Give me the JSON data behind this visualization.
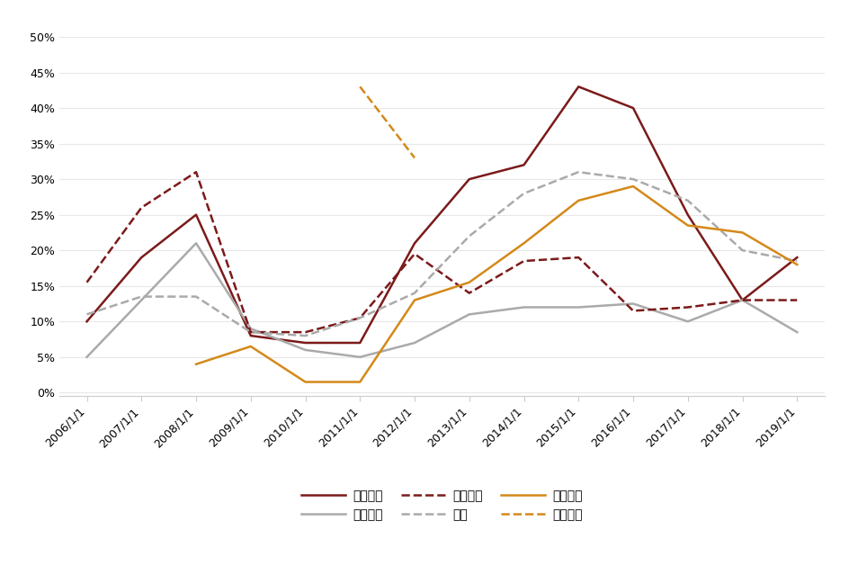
{
  "years": [
    2006,
    2007,
    2008,
    2009,
    2010,
    2011,
    2012,
    2013,
    2014,
    2015,
    2016,
    2017,
    2018,
    2019
  ],
  "series": {
    "三一重工": {
      "values": [
        0.1,
        0.19,
        0.25,
        0.08,
        0.07,
        0.07,
        0.21,
        0.3,
        0.32,
        0.43,
        0.4,
        0.25,
        0.13,
        0.19
      ],
      "color": "#7B1A1A",
      "linestyle": "solid",
      "linewidth": 1.8,
      "dashes": null
    },
    "中联重科": {
      "values": [
        0.05,
        0.13,
        0.21,
        0.09,
        0.06,
        0.05,
        0.07,
        0.11,
        0.12,
        0.12,
        0.125,
        0.1,
        0.13,
        0.085
      ],
      "color": "#AAAAAA",
      "linestyle": "solid",
      "linewidth": 1.8,
      "dashes": null
    },
    "徐工机械": {
      "values": [
        0.155,
        0.26,
        0.31,
        0.085,
        0.085,
        0.105,
        0.195,
        0.14,
        0.185,
        0.19,
        0.115,
        0.12,
        0.13,
        0.13
      ],
      "color": "#7B1A1A",
      "linestyle": "dashed",
      "linewidth": 1.8,
      "dashes": [
        6,
        3
      ]
    },
    "柳工": {
      "values": [
        0.11,
        0.135,
        0.135,
        0.085,
        0.08,
        0.105,
        0.14,
        0.22,
        0.28,
        0.31,
        0.3,
        0.27,
        0.2,
        0.185
      ],
      "color": "#AAAAAA",
      "linestyle": "dashed",
      "linewidth": 1.8,
      "dashes": [
        6,
        3
      ]
    },
    "恒立液压": {
      "values": [
        null,
        null,
        0.04,
        0.065,
        0.015,
        0.015,
        0.13,
        0.155,
        0.21,
        0.27,
        0.29,
        0.235,
        0.225,
        0.18
      ],
      "color": "#D4891A",
      "linestyle": "solid",
      "linewidth": 1.8,
      "dashes": null
    },
    "艾迪精密": {
      "values": [
        null,
        null,
        null,
        null,
        null,
        0.43,
        0.33,
        null,
        null,
        null,
        null,
        null,
        null,
        null
      ],
      "color": "#D4891A",
      "linestyle": "dashed",
      "linewidth": 1.8,
      "dashes": [
        6,
        3
      ]
    }
  },
  "xlabels": [
    "2006/1/1",
    "2007/1/1",
    "2008/1/1",
    "2009/1/1",
    "2010/1/1",
    "2011/1/1",
    "2012/1/1",
    "2013/1/1",
    "2014/1/1",
    "2015/1/1",
    "2016/1/1",
    "2017/1/1",
    "2018/1/1",
    "2019/1/1"
  ],
  "yticks": [
    0.0,
    0.05,
    0.1,
    0.15,
    0.2,
    0.25,
    0.3,
    0.35,
    0.4,
    0.45,
    0.5
  ],
  "ylim": [
    -0.005,
    0.52
  ],
  "background_color": "#FFFFFF",
  "legend_order": [
    "三一重工",
    "中联重科",
    "徐工机械",
    "柳工",
    "恒立液压",
    "艾迪精密"
  ],
  "legend_row1": [
    "三一重工",
    "中联重科",
    "徐工机械"
  ],
  "legend_row2": [
    "柳工",
    "恒立液压",
    "艾迪精密"
  ]
}
